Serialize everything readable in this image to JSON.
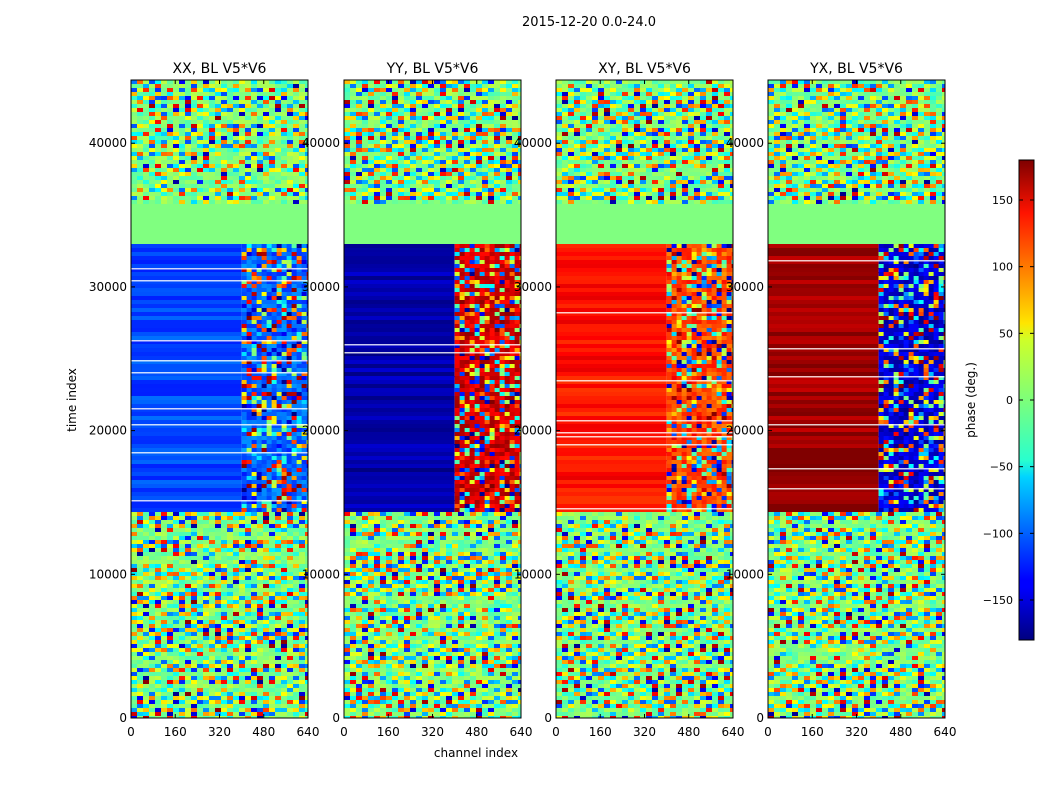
{
  "figure": {
    "suptitle": "2015-12-20 0.0-24.0",
    "xlabel": "channel index",
    "ylabel": "time index"
  },
  "chart_data": {
    "type": "heatmap",
    "title": "2015-12-20 0.0-24.0",
    "xlabel": "channel index",
    "ylabel": "time index",
    "xlim": [
      0,
      640
    ],
    "ylim": [
      0,
      44400
    ],
    "x_ticks": [
      0,
      160,
      320,
      480,
      640
    ],
    "y_ticks": [
      0,
      10000,
      20000,
      30000,
      40000
    ],
    "colormap": "jet",
    "grid": false,
    "panels": [
      {
        "title": "XX, BL V5*V6",
        "dominant_phase_deg": -110,
        "low_channel_block_phase_deg": -110,
        "high_channel_block_phase_deg": -100
      },
      {
        "title": "YY, BL V5*V6",
        "dominant_phase_deg": -165,
        "low_channel_block_phase_deg": -165,
        "high_channel_block_phase_deg": 150
      },
      {
        "title": "XY, BL V5*V6",
        "dominant_phase_deg": 120,
        "low_channel_block_phase_deg": 130,
        "high_channel_block_phase_deg": 110
      },
      {
        "title": "YX, BL V5*V6",
        "dominant_phase_deg": 160,
        "low_channel_block_phase_deg": 170,
        "high_channel_block_phase_deg": -150
      }
    ],
    "colorbar": {
      "label": "phase (deg.)",
      "range": [
        -180,
        180
      ],
      "ticks": [
        -150,
        -100,
        -50,
        0,
        50,
        100,
        150
      ],
      "tick_labels": [
        "−150",
        "−100",
        "−50",
        "0",
        "50",
        "100",
        "150"
      ]
    },
    "time_bands": [
      {
        "from": 0,
        "to": 14500,
        "pattern": "noisy fringes"
      },
      {
        "from": 14500,
        "to": 33000,
        "pattern": "coherent phase blocks"
      },
      {
        "from": 33000,
        "to": 35800,
        "pattern": "flat zero phase"
      },
      {
        "from": 35800,
        "to": 44400,
        "pattern": "noisy fringes"
      }
    ]
  }
}
